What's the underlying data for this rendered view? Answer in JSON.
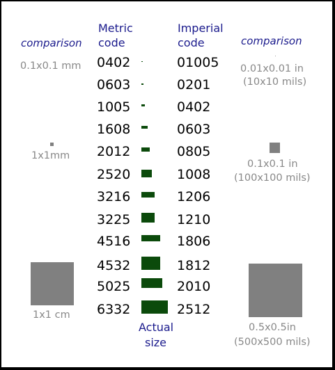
{
  "headers": {
    "left_comparison": "comparison",
    "metric": [
      "Metric",
      "code"
    ],
    "imperial": [
      "Imperial",
      "code"
    ],
    "right_comparison": "comparison",
    "actual_size": [
      "Actual",
      "size"
    ]
  },
  "left_notes": {
    "tiny": "0.1x0.1 mm",
    "small": "1x1mm",
    "large": "1x1 cm"
  },
  "right_notes": {
    "tiny": [
      "0.01x0.01 in",
      "(10x10 mils)"
    ],
    "small": [
      "0.1x0.1 in",
      "(100x100 mils)"
    ],
    "large": [
      "0.5x0.5in",
      "(500x500 mils)"
    ]
  },
  "rows": [
    {
      "metric": "0402",
      "imperial": "01005"
    },
    {
      "metric": "0603",
      "imperial": "0201"
    },
    {
      "metric": "1005",
      "imperial": "0402"
    },
    {
      "metric": "1608",
      "imperial": "0603"
    },
    {
      "metric": "2012",
      "imperial": "0805"
    },
    {
      "metric": "2520",
      "imperial": "1008"
    },
    {
      "metric": "3216",
      "imperial": "1206"
    },
    {
      "metric": "3225",
      "imperial": "1210"
    },
    {
      "metric": "4516",
      "imperial": "1806"
    },
    {
      "metric": "4532",
      "imperial": "1812"
    },
    {
      "metric": "5025",
      "imperial": "2010"
    },
    {
      "metric": "6332",
      "imperial": "2512"
    }
  ],
  "colors": {
    "heading": "#1a1a8c",
    "note": "#888888",
    "chip": "#0b4a0b",
    "square": "#808080",
    "frame": "#000000"
  }
}
